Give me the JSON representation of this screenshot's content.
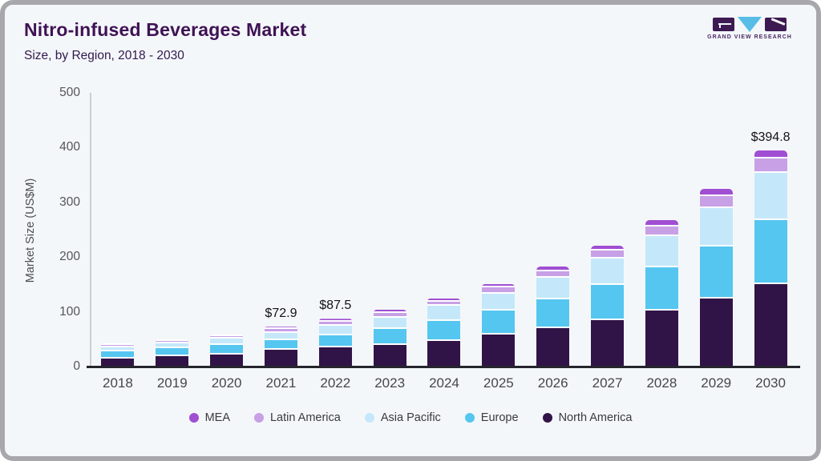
{
  "header": {
    "title": "Nitro-infused Beverages Market",
    "subtitle": "Size, by Region, 2018 - 2030",
    "logo_brand": "GRAND VIEW RESEARCH"
  },
  "colors": {
    "background": "#f4f7fa",
    "frame": "#a8a8ac",
    "title_text": "#3f1254",
    "axis_text": "#55555c",
    "x_axis_line": "#25252d",
    "y_axis_line": "#c9cdd6"
  },
  "chart_data": {
    "type": "bar",
    "stacked": true,
    "title": "Nitro-infused Beverages Market Size, by Region, 2018 - 2030",
    "xlabel": "",
    "ylabel": "Market Size (US$M)",
    "ylim": [
      0,
      500
    ],
    "yticks": [
      0,
      100,
      200,
      300,
      400,
      500
    ],
    "grid": false,
    "legend_position": "bottom",
    "categories": [
      "2018",
      "2019",
      "2020",
      "2021",
      "2022",
      "2023",
      "2024",
      "2025",
      "2026",
      "2027",
      "2028",
      "2029",
      "2030"
    ],
    "series": [
      {
        "name": "North America",
        "color": "#311447",
        "values": [
          15.2,
          18.8,
          22.4,
          30.2,
          34.5,
          39.4,
          47.5,
          59.0,
          70.5,
          84.5,
          103.0,
          125.0,
          151.0
        ]
      },
      {
        "name": "Europe",
        "color": "#55c6f0",
        "values": [
          12.8,
          14.7,
          17.4,
          17.9,
          23.0,
          29.5,
          36.0,
          43.5,
          53.0,
          64.0,
          78.0,
          94.5,
          116.0
        ]
      },
      {
        "name": "Asia Pacific",
        "color": "#c4e8f9",
        "values": [
          7.6,
          8.9,
          11.2,
          13.7,
          17.0,
          21.0,
          27.3,
          31.3,
          39.2,
          49.0,
          57.5,
          70.5,
          87.0
        ]
      },
      {
        "name": "Latin America",
        "color": "#c7a0e6",
        "values": [
          4.0,
          4.2,
          4.8,
          6.5,
          8.0,
          8.5,
          8.0,
          10.5,
          12.0,
          14.0,
          17.0,
          21.0,
          25.5
        ]
      },
      {
        "name": "MEA",
        "color": "#a04ed2",
        "values": [
          2.4,
          2.0,
          2.9,
          4.6,
          5.0,
          5.5,
          6.0,
          6.5,
          7.5,
          9.0,
          11.5,
          13.0,
          15.3
        ]
      }
    ],
    "totals": [
      42.0,
      48.6,
      58.7,
      72.9,
      87.5,
      103.9,
      124.8,
      150.8,
      182.2,
      220.5,
      267.0,
      324.0,
      394.8
    ],
    "annotations": [
      {
        "category": "2021",
        "text": "$72.9"
      },
      {
        "category": "2022",
        "text": "$87.5"
      },
      {
        "category": "2030",
        "text": "$394.8"
      }
    ],
    "legend_order": [
      "MEA",
      "Latin America",
      "Asia Pacific",
      "Europe",
      "North America"
    ]
  }
}
